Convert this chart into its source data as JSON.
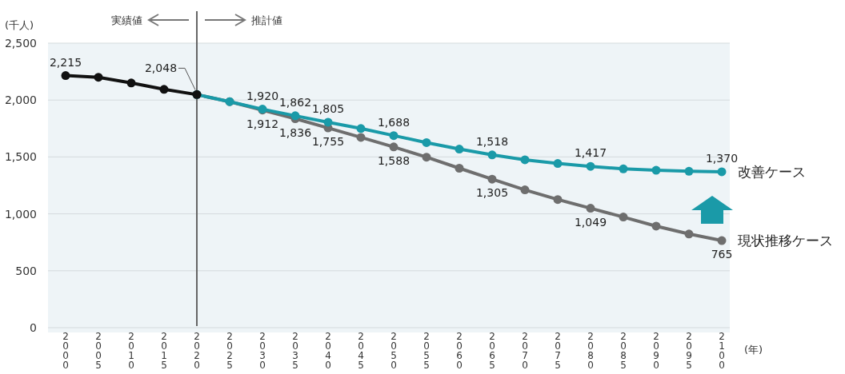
{
  "chart_data": {
    "type": "line",
    "xlabel": "(年)",
    "ylabel": "(千人)",
    "categories": [
      "2000",
      "2005",
      "2010",
      "2015",
      "2020",
      "2025",
      "2030",
      "2035",
      "2040",
      "2045",
      "2050",
      "2055",
      "2060",
      "2065",
      "2070",
      "2075",
      "2080",
      "2085",
      "2090",
      "2095",
      "2100"
    ],
    "series": [
      {
        "color": "#6e6e6e",
        "name": "現状推移ケース",
        "values": [
          null,
          null,
          null,
          null,
          2048,
          1986,
          1912,
          1836,
          1755,
          1672,
          1588,
          1498,
          1401,
          1305,
          1211,
          1126,
          1049,
          972,
          892,
          823,
          765
        ],
        "value_labels": [
          null,
          null,
          null,
          null,
          null,
          null,
          "1,912",
          "1,836",
          "1,755",
          null,
          "1,588",
          null,
          null,
          "1,305",
          null,
          null,
          "1,049",
          null,
          null,
          null,
          "765"
        ]
      },
      {
        "color": "#1a9aa8",
        "name": "改善ケース",
        "values": [
          null,
          null,
          null,
          null,
          2048,
          1986,
          1920,
          1862,
          1805,
          1750,
          1688,
          1626,
          1569,
          1518,
          1475,
          1443,
          1417,
          1395,
          1383,
          1374,
          1370
        ],
        "value_labels": [
          null,
          null,
          null,
          null,
          null,
          null,
          "1,920",
          "1,862",
          "1,805",
          null,
          "1,688",
          null,
          null,
          "1,518",
          null,
          null,
          "1,417",
          null,
          null,
          null,
          "1,370"
        ]
      },
      {
        "color": "#111111",
        "values": [
          2215,
          2200,
          2150,
          2094,
          2048,
          null,
          null,
          null,
          null,
          null,
          null,
          null,
          null,
          null,
          null,
          null,
          null,
          null,
          null,
          null,
          null
        ],
        "value_labels": [
          "2,215",
          null,
          null,
          null,
          "2,048",
          null,
          null,
          null,
          null,
          null,
          null,
          null,
          null,
          null,
          null,
          null,
          null,
          null,
          null,
          null,
          null
        ]
      }
    ],
    "ylim": [
      0,
      2500
    ],
    "yticks": [
      0,
      500,
      {
        "value": 1000,
        "label": "1,000"
      },
      {
        "value": 1500,
        "label": "1,500"
      },
      {
        "value": 2000,
        "label": "2,000"
      },
      {
        "value": 2500,
        "label": "2,500"
      }
    ],
    "grid": "y",
    "legend": false,
    "marker": "circle",
    "line_style": "solid",
    "ref_lines": [
      {
        "axis": "x",
        "value": "2020",
        "color": "#666666"
      }
    ],
    "annotations": [
      "実績値",
      "推計値"
    ]
  }
}
